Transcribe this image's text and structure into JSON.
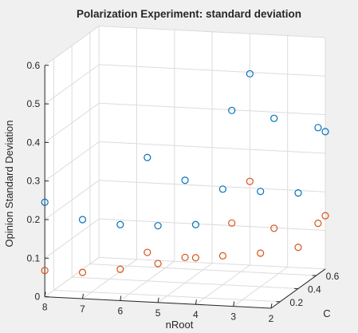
{
  "chart_data": {
    "type": "scatter",
    "title": "Polarization Experiment: standard deviation",
    "xlabel": "nRoot",
    "ylabel": "C",
    "zlabel": "Opinion Standard Deviation",
    "x_ticks": [
      "2",
      "3",
      "4",
      "5",
      "6",
      "7",
      "8"
    ],
    "y_ticks": [
      "0.2",
      "0.4",
      "0.6"
    ],
    "z_ticks": [
      "0",
      "0.1",
      "0.2",
      "0.3",
      "0.4",
      "0.5",
      "0.6"
    ],
    "xlim": [
      2,
      8
    ],
    "ylim": [
      0.1,
      0.7
    ],
    "zlim": [
      0,
      0.6
    ],
    "grid": true,
    "projection": {
      "origin": [
        340,
        386
      ],
      "x_step": [
        -47.3,
        -2.4
      ],
      "y_per_unit": [
        113.3,
        -82
      ],
      "z_per_unit": [
        0,
        -483
      ]
    },
    "series": [
      {
        "color": "#0072BD",
        "points": [
          {
            "x": 8,
            "y": 0.1,
            "z": 0.245
          },
          {
            "x": 7,
            "y": 0.1,
            "z": 0.205
          },
          {
            "x": 6,
            "y": 0.1,
            "z": 0.197
          },
          {
            "x": 5,
            "y": 0.1,
            "z": 0.199
          },
          {
            "x": 4,
            "y": 0.1,
            "z": 0.207
          },
          {
            "x": 6,
            "y": 0.4,
            "z": 0.32
          },
          {
            "x": 5,
            "y": 0.4,
            "z": 0.266
          },
          {
            "x": 4,
            "y": 0.4,
            "z": 0.248
          },
          {
            "x": 3,
            "y": 0.4,
            "z": 0.247
          },
          {
            "x": 2,
            "y": 0.4,
            "z": 0.248
          },
          {
            "x": 4,
            "y": 0.7,
            "z": 0.496
          },
          {
            "x": 4,
            "y": 0.5,
            "z": 0.435
          },
          {
            "x": 3,
            "y": 0.55,
            "z": 0.411
          },
          {
            "x": 2,
            "y": 0.62,
            "z": 0.38
          },
          {
            "x": 2,
            "y": 0.7,
            "z": 0.356
          }
        ]
      },
      {
        "color": "#D95319",
        "points": [
          {
            "x": 8,
            "y": 0.1,
            "z": 0.068
          },
          {
            "x": 7,
            "y": 0.1,
            "z": 0.068
          },
          {
            "x": 6,
            "y": 0.1,
            "z": 0.081
          },
          {
            "x": 5,
            "y": 0.1,
            "z": 0.101
          },
          {
            "x": 4,
            "y": 0.1,
            "z": 0.121
          },
          {
            "x": 6,
            "y": 0.4,
            "z": 0.074
          },
          {
            "x": 5,
            "y": 0.4,
            "z": 0.066
          },
          {
            "x": 4,
            "y": 0.4,
            "z": 0.075
          },
          {
            "x": 3,
            "y": 0.4,
            "z": 0.087
          },
          {
            "x": 2,
            "y": 0.4,
            "z": 0.107
          },
          {
            "x": 4,
            "y": 0.7,
            "z": 0.217
          },
          {
            "x": 4,
            "y": 0.5,
            "z": 0.143
          },
          {
            "x": 3,
            "y": 0.55,
            "z": 0.126
          },
          {
            "x": 2,
            "y": 0.62,
            "z": 0.132
          },
          {
            "x": 2,
            "y": 0.7,
            "z": 0.138
          }
        ]
      }
    ]
  }
}
